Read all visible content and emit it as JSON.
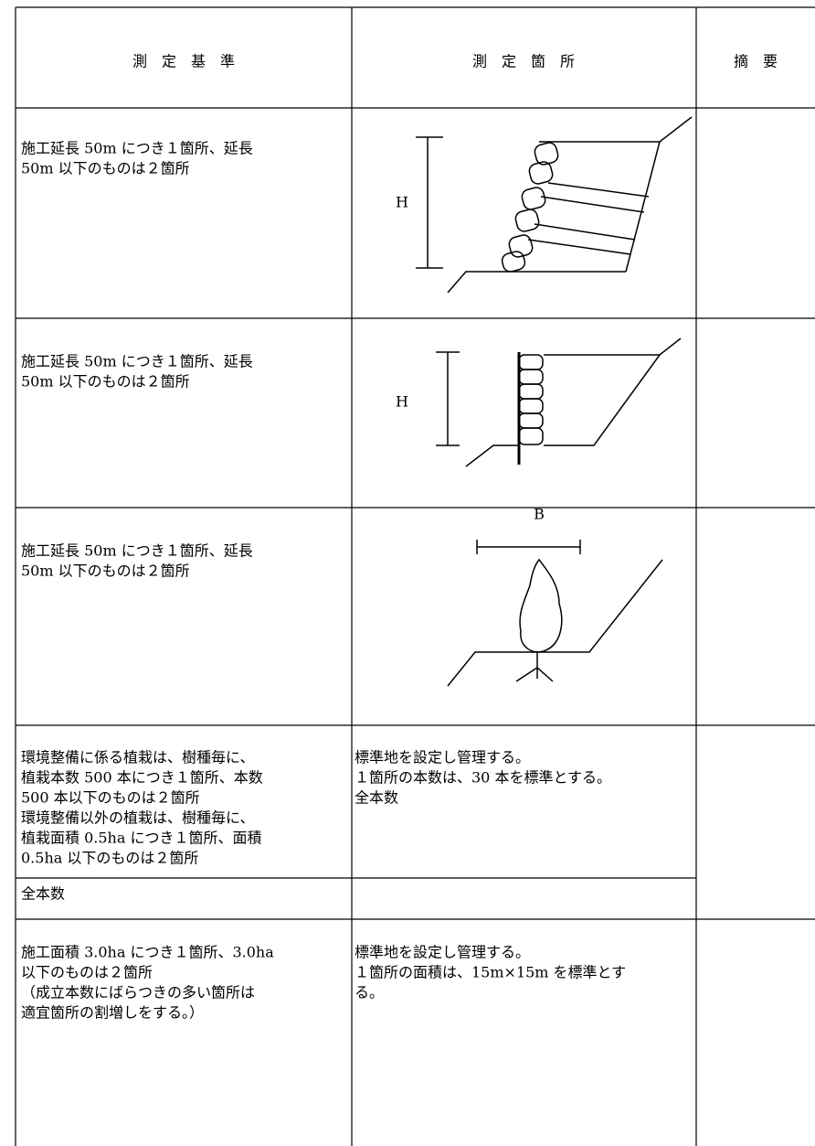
{
  "header": [
    "測　定　基　準",
    "測　定　箇　所",
    "摘　要"
  ],
  "rows": [
    {
      "criteria": [
        "施工延長 50m につき１箇所、延長",
        "50m 以下のものは２箇所"
      ],
      "figure_label": "H"
    },
    {
      "criteria": [
        "施工延長 50m につき１箇所、延長",
        "50m 以下のものは２箇所"
      ],
      "figure_label": "H"
    },
    {
      "criteria": [
        "施工延長 50m につき１箇所、延長",
        "50m 以下のものは２箇所"
      ],
      "figure_label": "B"
    },
    {
      "criteria": [
        "環境整備に係る植栽は、樹種毎に、",
        "植栽本数 500 本につき１箇所、本数",
        "500 本以下のものは２箇所",
        "環境整備以外の植栽は、樹種毎に、",
        "植栽面積 0.5ha につき１箇所、面積",
        "0.5ha 以下のものは２箇所"
      ],
      "location": [
        "標準地を設定し管理する。",
        "１箇所の本数は、30 本を標準とする。",
        "全本数"
      ]
    },
    {
      "criteria": [
        "全本数"
      ]
    },
    {
      "criteria": [
        "施工面積 3.0ha につき１箇所、3.0ha",
        "以下のものは２箇所",
        "（成立本数にばらつきの多い箇所は",
        "適宜箇所の割増しをする。）"
      ],
      "location": [
        "標準地を設定し管理する。",
        "１箇所の面積は、15m×15m を標準とす",
        "る。"
      ]
    }
  ]
}
